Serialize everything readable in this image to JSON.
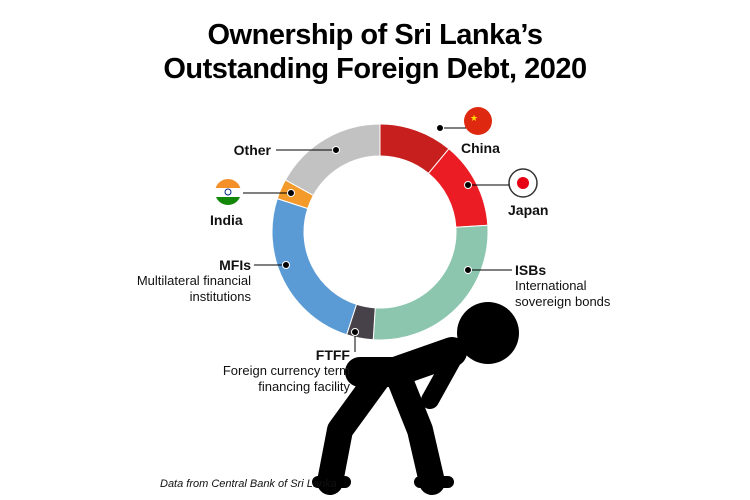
{
  "chart_data": {
    "type": "donut",
    "title": "Ownership of Sri Lanka’s Outstanding Foreign Debt, 2020",
    "categories": [
      "China",
      "Japan",
      "ISBs",
      "FTFF",
      "MFIs",
      "India",
      "Other"
    ],
    "descriptions": [
      null,
      null,
      "International sovereign bonds",
      "Foreign currency term financing facility",
      "Multilateral financial institutions",
      null,
      null
    ],
    "values": [
      11,
      13,
      27,
      4,
      25,
      3,
      17
    ],
    "colors": [
      "#c61f1d",
      "#ec1c24",
      "#8dc6ae",
      "#47424a",
      "#5b9bd5",
      "#f39a2a",
      "#c2c2c2"
    ],
    "source": "Data from Central Bank of Sri Lanka"
  }
}
